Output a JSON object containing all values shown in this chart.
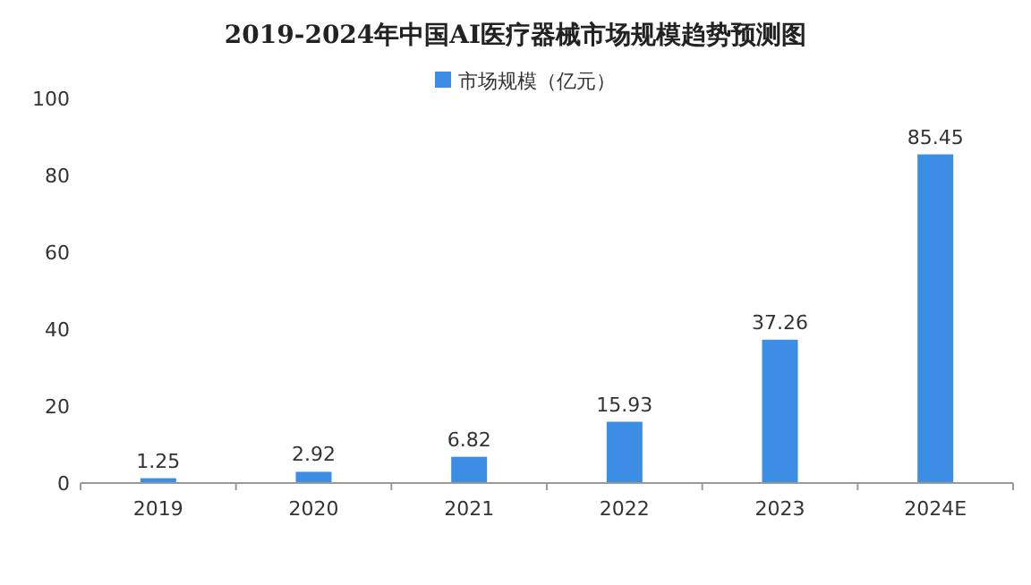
{
  "chart_data": {
    "type": "bar",
    "title": "2019-2024年中国AI医疗器械市场规模趋势预测图",
    "categories": [
      "2019",
      "2020",
      "2021",
      "2022",
      "2023",
      "2024E"
    ],
    "series": [
      {
        "name": "市场规模（亿元）",
        "color": "#3b8ee3",
        "values": [
          1.25,
          2.92,
          6.82,
          15.93,
          37.26,
          85.45
        ]
      }
    ],
    "ylim": [
      0,
      100
    ],
    "yticks": [
      0,
      20,
      40,
      60,
      80,
      100
    ],
    "data_labels": true,
    "legend": "top",
    "grid": false
  }
}
